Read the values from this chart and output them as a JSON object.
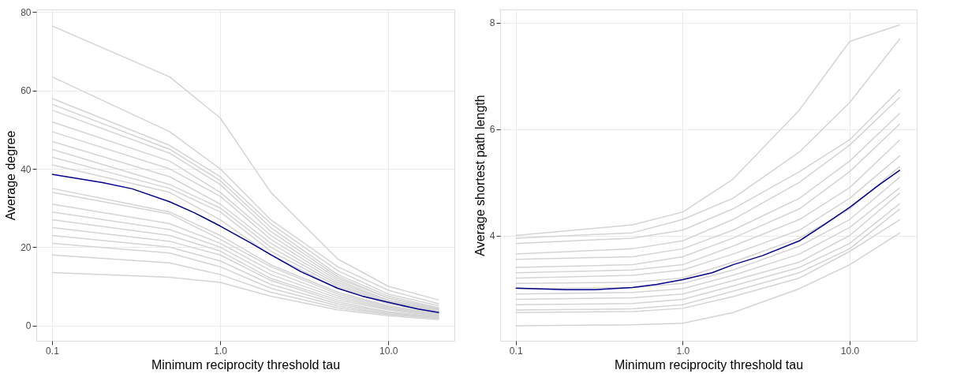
{
  "chart_data": [
    {
      "type": "line",
      "xlabel": "Minimum reciprocity threshold tau",
      "ylabel": "Average degree",
      "log": "x",
      "grid": true,
      "legend": false,
      "marker": "none",
      "line_style": "solid",
      "xlim": [
        0.0806,
        24.7
      ],
      "xticks": [
        {
          "value": 0.1,
          "label": "0.1"
        },
        {
          "value": 1,
          "label": "1.0"
        },
        {
          "value": 10,
          "label": "10.0"
        }
      ],
      "ylim": [
        -3.9,
        80.7
      ],
      "yticks": [
        0,
        20,
        40,
        60,
        80
      ],
      "x": [
        0.1,
        0.5,
        1,
        2,
        5,
        10,
        20
      ],
      "series": [
        {
          "color": "#d4d4d4",
          "values": [
            76.5,
            63.5,
            53,
            34,
            17,
            10,
            6.5
          ]
        },
        {
          "color": "#d4d4d4",
          "values": [
            63.5,
            49.5,
            40,
            27,
            15,
            9,
            5.5
          ]
        },
        {
          "color": "#d4d4d4",
          "values": [
            58,
            46,
            38,
            26,
            14,
            8,
            5
          ]
        },
        {
          "color": "#d4d4d4",
          "values": [
            56.5,
            45,
            37,
            25,
            13,
            7.5,
            4.5
          ]
        },
        {
          "color": "#d4d4d4",
          "values": [
            55,
            44,
            36,
            24,
            12.5,
            7,
            4.3
          ]
        },
        {
          "color": "#d4d4d4",
          "values": [
            52,
            42,
            34,
            23,
            12,
            7,
            4.2
          ]
        },
        {
          "color": "#d4d4d4",
          "values": [
            49.5,
            40,
            33,
            22,
            11.5,
            6.5,
            4
          ]
        },
        {
          "color": "#d4d4d4",
          "values": [
            47,
            38,
            31,
            21,
            11,
            6.3,
            3.8
          ]
        },
        {
          "color": "#d4d4d4",
          "values": [
            45,
            36,
            30,
            20,
            10.5,
            6,
            3.6
          ]
        },
        {
          "color": "#d4d4d4",
          "values": [
            43,
            35,
            29,
            19,
            10,
            5.8,
            3.5
          ]
        },
        {
          "color": "#d4d4d4",
          "values": [
            41,
            34,
            27,
            18,
            9.5,
            5.5,
            3.3
          ]
        },
        {
          "color": "#d4d4d4",
          "values": [
            35,
            29,
            23,
            15.5,
            8.5,
            5,
            3
          ]
        },
        {
          "color": "#d4d4d4",
          "values": [
            34,
            28.5,
            22,
            15,
            8,
            4.8,
            2.8
          ]
        },
        {
          "color": "#d4d4d4",
          "values": [
            31,
            26,
            21,
            14,
            7.5,
            4.5,
            2.7
          ]
        },
        {
          "color": "#d4d4d4",
          "values": [
            29,
            24.5,
            20,
            13,
            7,
            4.2,
            2.5
          ]
        },
        {
          "color": "#d4d4d4",
          "values": [
            27,
            23,
            19,
            12,
            6.5,
            4,
            2.4
          ]
        },
        {
          "color": "#d4d4d4",
          "values": [
            25,
            21.5,
            18,
            11.5,
            6,
            3.5,
            2.2
          ]
        },
        {
          "color": "#d4d4d4",
          "values": [
            23,
            20,
            16.5,
            10.5,
            5.5,
            3.3,
            2
          ]
        },
        {
          "color": "#d4d4d4",
          "values": [
            21,
            18.5,
            15,
            9.5,
            5,
            3,
            1.9
          ]
        },
        {
          "color": "#d4d4d4",
          "values": [
            18,
            16,
            13,
            8.5,
            4.5,
            2.8,
            1.8
          ]
        },
        {
          "color": "#d4d4d4",
          "values": [
            13.5,
            12.3,
            11,
            7.5,
            4,
            2.5,
            1.5
          ]
        },
        {
          "color": "#00008b",
          "x": [
            0.1,
            0.2,
            0.3,
            0.5,
            0.7,
            1,
            1.5,
            2,
            3,
            5,
            7,
            10,
            15,
            20
          ],
          "values": [
            38.6,
            36.5,
            34.9,
            31.6,
            28.8,
            25.4,
            21.2,
            18.1,
            13.8,
            9.5,
            7.5,
            5.9,
            4.2,
            3.3
          ]
        }
      ]
    },
    {
      "type": "line",
      "xlabel": "Minimum reciprocity threshold tau",
      "ylabel": "Average shortest path length",
      "log": "x",
      "grid": true,
      "legend": false,
      "marker": "none",
      "line_style": "solid",
      "xlim": [
        0.0807,
        25.2
      ],
      "xticks": [
        {
          "value": 0.1,
          "label": "0.1"
        },
        {
          "value": 1,
          "label": "1.0"
        },
        {
          "value": 10,
          "label": "10.0"
        }
      ],
      "ylim": [
        2.02,
        8.25
      ],
      "yticks": [
        4,
        6,
        8
      ],
      "x": [
        0.1,
        0.5,
        1,
        2,
        5,
        10,
        20
      ],
      "series": [
        {
          "color": "#d4d4d4",
          "values": [
            4.0,
            4.2,
            4.44,
            5.06,
            6.36,
            7.65,
            7.96
          ]
        },
        {
          "color": "#d4d4d4",
          "values": [
            3.95,
            4.05,
            4.3,
            4.7,
            5.57,
            6.5,
            7.7
          ]
        },
        {
          "color": "#d4d4d4",
          "values": [
            3.85,
            3.95,
            4.1,
            4.5,
            5.2,
            5.8,
            6.75
          ]
        },
        {
          "color": "#d4d4d4",
          "values": [
            3.65,
            3.75,
            3.9,
            4.3,
            5.0,
            5.7,
            6.6
          ]
        },
        {
          "color": "#d4d4d4",
          "values": [
            3.55,
            3.6,
            3.75,
            4.1,
            4.7,
            5.4,
            6.3
          ]
        },
        {
          "color": "#d4d4d4",
          "values": [
            3.4,
            3.45,
            3.6,
            3.95,
            4.5,
            5.2,
            6.1
          ]
        },
        {
          "color": "#d4d4d4",
          "values": [
            3.3,
            3.35,
            3.45,
            3.8,
            4.3,
            4.9,
            5.8
          ]
        },
        {
          "color": "#d4d4d4",
          "values": [
            3.2,
            3.25,
            3.35,
            3.65,
            4.1,
            4.7,
            5.5
          ]
        },
        {
          "color": "#d4d4d4",
          "values": [
            3.1,
            3.12,
            3.2,
            3.5,
            3.95,
            4.5,
            5.3
          ]
        },
        {
          "color": "#d4d4d4",
          "values": [
            3.0,
            3.02,
            3.1,
            3.35,
            3.8,
            4.3,
            5.1
          ]
        },
        {
          "color": "#d4d4d4",
          "values": [
            2.9,
            2.93,
            3.0,
            3.25,
            3.65,
            4.15,
            4.9
          ]
        },
        {
          "color": "#d4d4d4",
          "values": [
            2.8,
            2.83,
            2.9,
            3.15,
            3.5,
            4.0,
            4.8
          ]
        },
        {
          "color": "#d4d4d4",
          "values": [
            2.7,
            2.72,
            2.8,
            3.05,
            3.4,
            3.85,
            4.6
          ]
        },
        {
          "color": "#d4d4d4",
          "values": [
            2.6,
            2.62,
            2.7,
            2.95,
            3.3,
            3.75,
            4.5
          ]
        },
        {
          "color": "#d4d4d4",
          "values": [
            2.55,
            2.57,
            2.63,
            2.85,
            3.2,
            3.7,
            4.3
          ]
        },
        {
          "color": "#d4d4d4",
          "values": [
            2.3,
            2.32,
            2.35,
            2.55,
            3.0,
            3.45,
            4.05
          ]
        },
        {
          "color": "#00008b",
          "x": [
            0.1,
            0.2,
            0.3,
            0.5,
            0.7,
            1,
            1.5,
            2,
            3,
            5,
            7,
            10,
            15,
            20
          ],
          "values": [
            3.01,
            2.98,
            2.98,
            3.02,
            3.08,
            3.17,
            3.3,
            3.45,
            3.62,
            3.9,
            4.2,
            4.53,
            4.95,
            5.23
          ]
        }
      ]
    }
  ]
}
